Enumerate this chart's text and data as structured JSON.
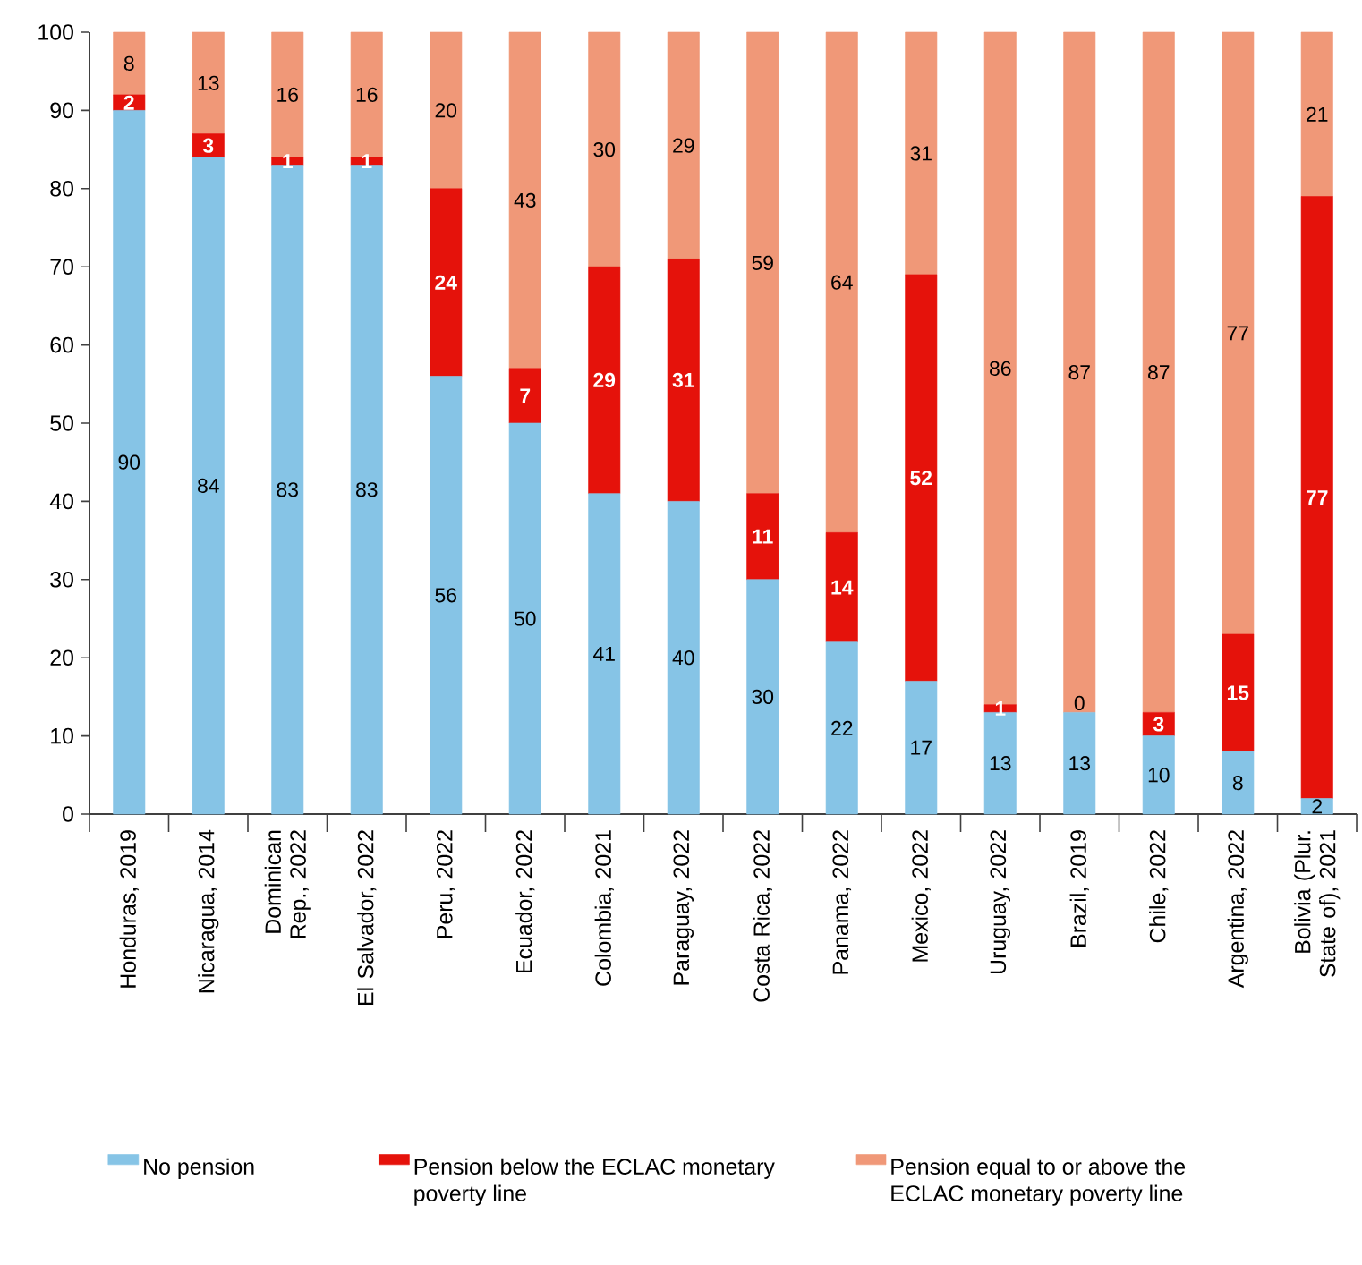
{
  "chart_data": {
    "type": "bar",
    "stacked": true,
    "categories": [
      "Honduras, 2019",
      "Nicaragua, 2014",
      "Dominican Rep., 2022",
      "El Salvador, 2022",
      "Peru, 2022",
      "Ecuador, 2022",
      "Colombia, 2021",
      "Paraguay, 2022",
      "Costa Rica, 2022",
      "Panama, 2022",
      "Mexico, 2022",
      "Uruguay, 2022",
      "Brazil, 2019",
      "Chile, 2022",
      "Argentina, 2022",
      "Bolivia (Plur. State of), 2021"
    ],
    "series": [
      {
        "name": "No pension",
        "color": "#86c4e6",
        "values": [
          90,
          84,
          83,
          83,
          56,
          50,
          41,
          40,
          30,
          22,
          17,
          13,
          13,
          10,
          8,
          2
        ]
      },
      {
        "name": "Pension below the ECLAC monetary poverty line",
        "color": "#e5120b",
        "values": [
          2,
          3,
          1,
          1,
          24,
          7,
          29,
          31,
          11,
          14,
          52,
          1,
          null,
          3,
          15,
          77
        ]
      },
      {
        "name": "Pension equal to or above the ECLAC monetary poverty line",
        "color": "#f09878",
        "values": [
          8,
          13,
          16,
          16,
          20,
          43,
          30,
          29,
          59,
          64,
          31,
          86,
          87,
          87,
          77,
          21
        ]
      }
    ],
    "ylim": [
      0,
      100
    ],
    "yticks": [
      0,
      10,
      20,
      30,
      40,
      50,
      60,
      70,
      80,
      90,
      100
    ],
    "data_labels": true,
    "legend": "bottom",
    "annotations": [
      {
        "text": "0",
        "x": "Brazil, 2019",
        "y": 13
      }
    ]
  }
}
